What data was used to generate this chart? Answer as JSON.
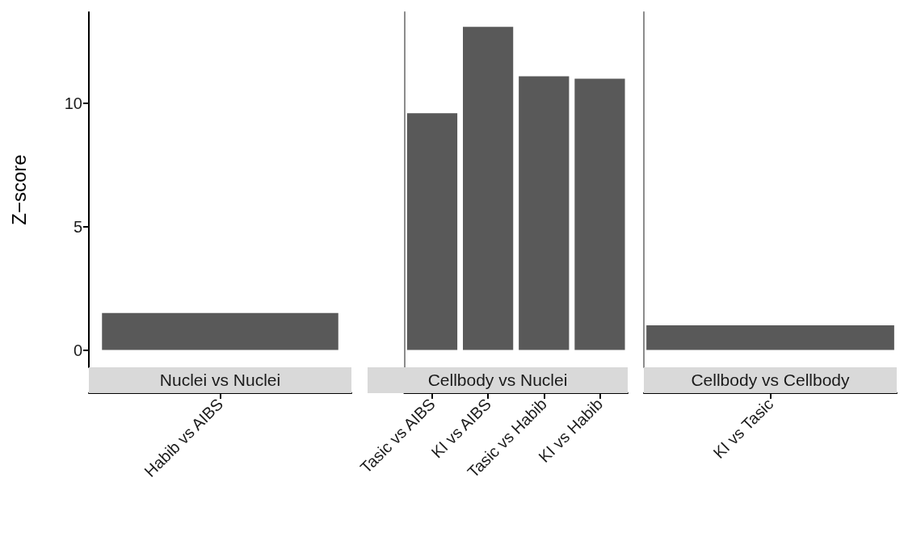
{
  "chart_data": [
    {
      "type": "bar",
      "title": "Nuclei vs Nuclei",
      "ylabel": "Z−score",
      "categories": [
        "Habib vs AIBS"
      ],
      "values": [
        1.5
      ],
      "color": "#595959",
      "ylim": [
        -0.7,
        13.7
      ],
      "yticks": [
        0,
        5,
        10
      ]
    },
    {
      "type": "bar",
      "title": "Cellbody vs Nuclei",
      "categories": [
        "Tasic vs AIBS",
        "KI vs AIBS",
        "Tasic vs Habib",
        "KI vs Habib"
      ],
      "values": [
        9.6,
        13.1,
        11.1,
        11.0
      ],
      "color": "#595959",
      "ylim": [
        -0.7,
        13.7
      ],
      "yticks": [
        0,
        5,
        10
      ],
      "tick_labels": "x"
    },
    {
      "type": "bar",
      "title": "Cellbody vs Cellbody",
      "categories": [
        "KI vs Tasic"
      ],
      "values": [
        1.0
      ],
      "color": "#595959",
      "ylim": [
        -0.7,
        13.7
      ],
      "yticks": [
        0,
        5,
        10
      ],
      "tick_labels": "x"
    }
  ]
}
